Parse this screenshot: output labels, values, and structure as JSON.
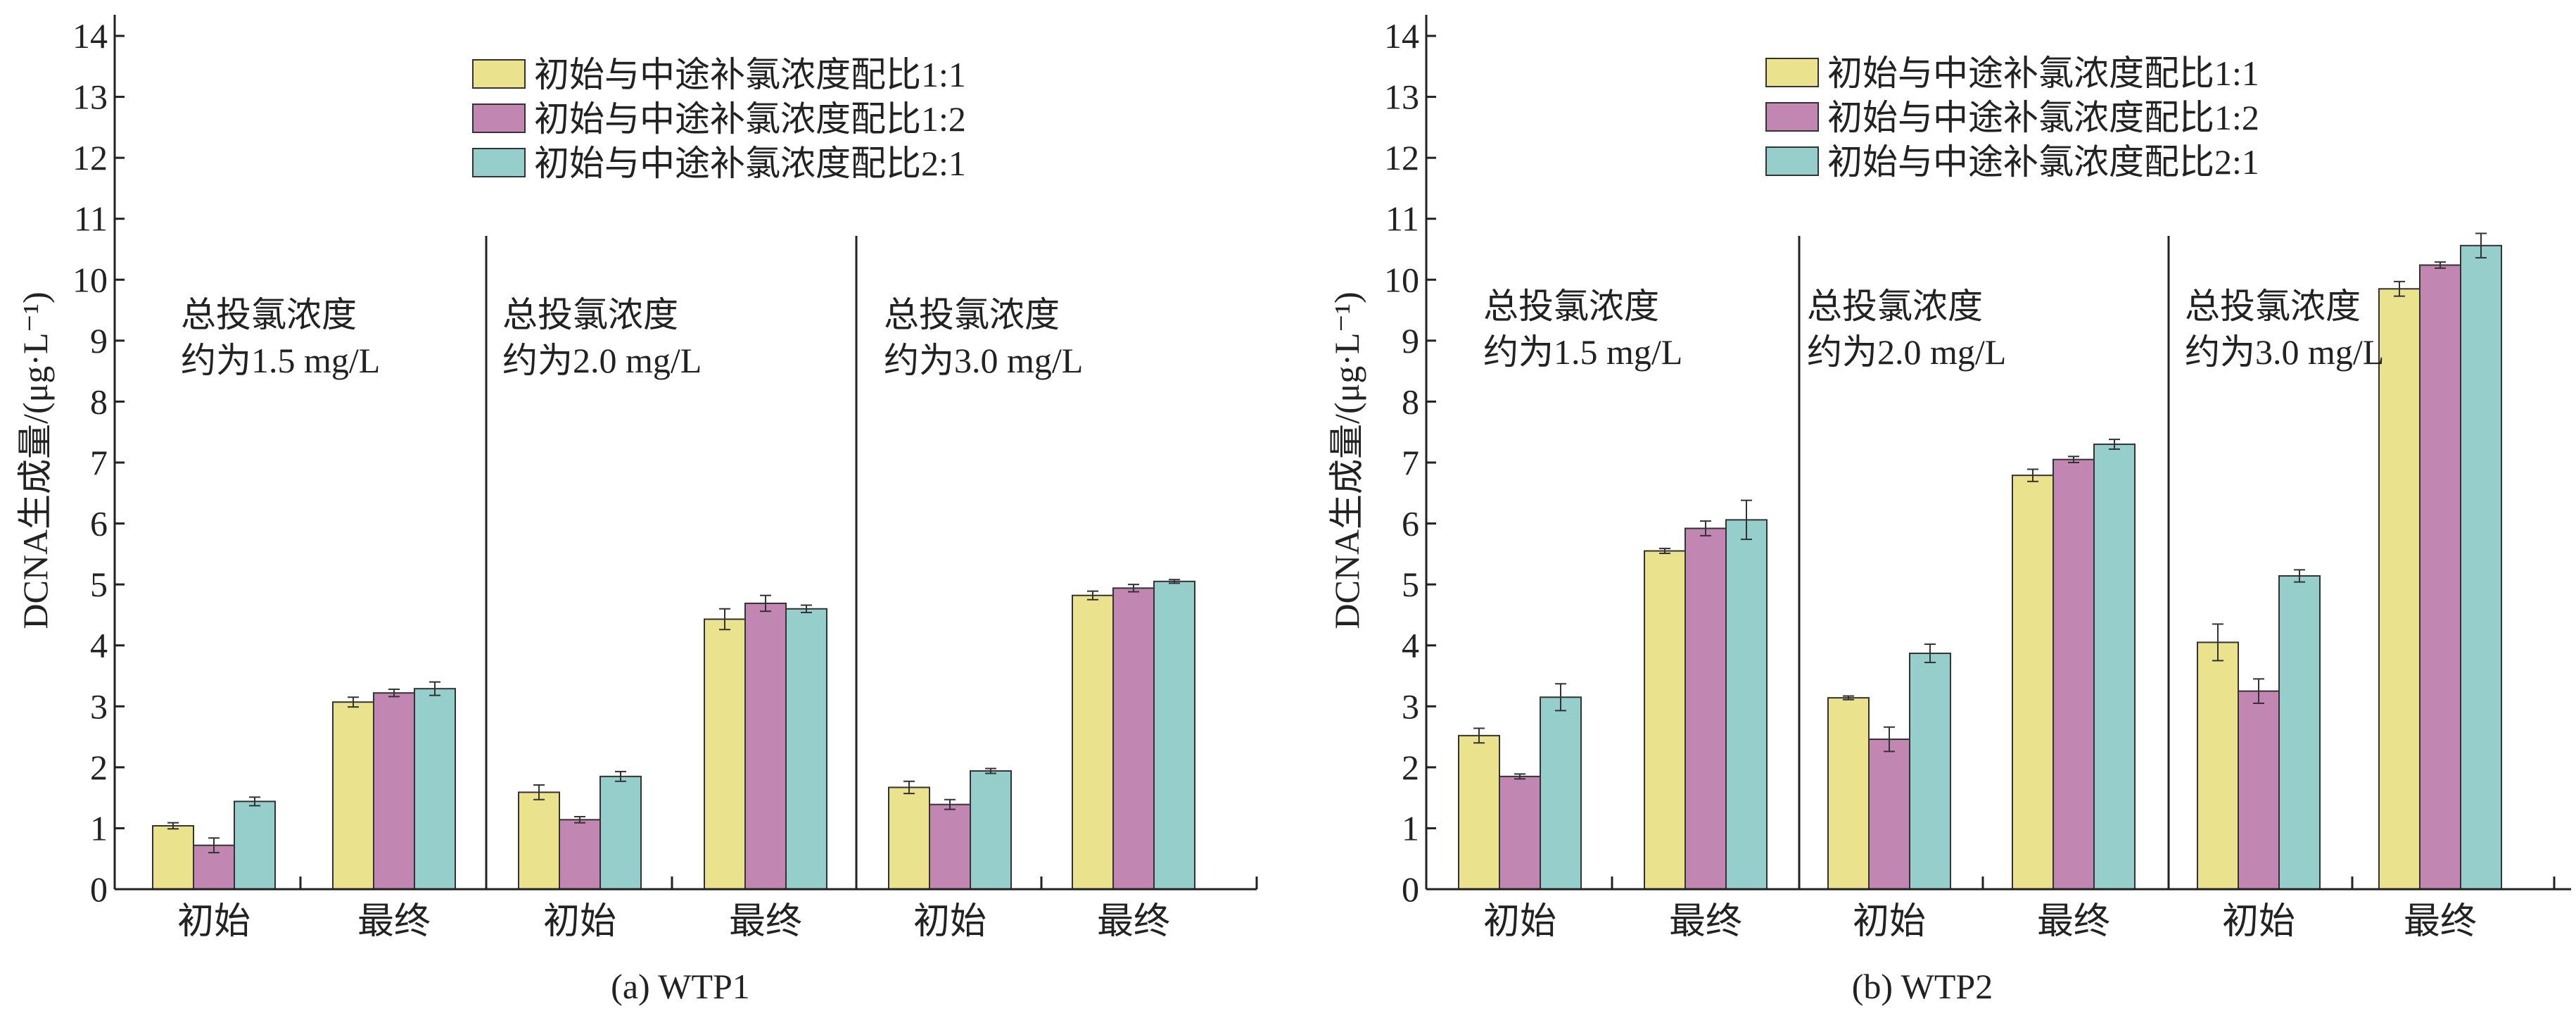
{
  "colors": {
    "s1": "#ebe28e",
    "s2": "#c186b1",
    "s3": "#95cecb",
    "axis": "#222222"
  },
  "chart_data": [
    {
      "type": "bar",
      "caption": "(a) WTP1",
      "ylabel": "DCNA生成量/(μg·L⁻¹)",
      "ylim": [
        0,
        14
      ],
      "yticks": [
        "0",
        "1",
        "2",
        "3",
        "4",
        "5",
        "6",
        "7",
        "8",
        "9",
        "10",
        "11",
        "12",
        "13",
        "14"
      ],
      "categories": [
        "初始",
        "最终",
        "初始",
        "最终",
        "初始",
        "最终"
      ],
      "group_annotations": [
        {
          "line1": "总投氯浓度",
          "line2": "约为1.5 mg/L"
        },
        {
          "line1": "总投氯浓度",
          "line2": "约为2.0 mg/L"
        },
        {
          "line1": "总投氯浓度",
          "line2": "约为3.0 mg/L"
        }
      ],
      "legend_position": "top-right",
      "series": [
        {
          "name": "初始与中途补氯浓度配比1:1",
          "values": [
            1.04,
            3.07,
            1.59,
            4.43,
            1.67,
            4.82
          ],
          "errors": [
            0.05,
            0.08,
            0.12,
            0.17,
            0.1,
            0.07
          ]
        },
        {
          "name": "初始与中途补氯浓度配比1:2",
          "values": [
            0.72,
            3.22,
            1.14,
            4.69,
            1.39,
            4.94
          ],
          "errors": [
            0.12,
            0.06,
            0.05,
            0.13,
            0.08,
            0.06
          ]
        },
        {
          "name": "初始与中途补氯浓度配比2:1",
          "values": [
            1.44,
            3.29,
            1.85,
            4.6,
            1.94,
            5.05
          ],
          "errors": [
            0.07,
            0.11,
            0.08,
            0.06,
            0.04,
            0.03
          ]
        }
      ]
    },
    {
      "type": "bar",
      "caption": "(b) WTP2",
      "ylabel": "DCNA生成量/(μg·L⁻¹)",
      "ylim": [
        0,
        14
      ],
      "yticks": [
        "0",
        "1",
        "2",
        "3",
        "4",
        "5",
        "6",
        "7",
        "8",
        "9",
        "10",
        "11",
        "12",
        "13",
        "14"
      ],
      "categories": [
        "初始",
        "最终",
        "初始",
        "最终",
        "初始",
        "最终"
      ],
      "group_annotations": [
        {
          "line1": "总投氯浓度",
          "line2": "约为1.5 mg/L"
        },
        {
          "line1": "总投氯浓度",
          "line2": "约为2.0 mg/L"
        },
        {
          "line1": "总投氯浓度",
          "line2": "约为3.0 mg/L"
        }
      ],
      "legend_position": "top-right",
      "series": [
        {
          "name": "初始与中途补氯浓度配比1:1",
          "values": [
            2.52,
            5.55,
            3.14,
            6.79,
            4.05,
            9.85
          ],
          "errors": [
            0.12,
            0.04,
            0.03,
            0.1,
            0.3,
            0.12
          ]
        },
        {
          "name": "初始与中途补氯浓度配比1:2",
          "values": [
            1.85,
            5.92,
            2.46,
            7.05,
            3.25,
            10.24
          ],
          "errors": [
            0.04,
            0.12,
            0.2,
            0.05,
            0.2,
            0.05
          ]
        },
        {
          "name": "初始与中途补氯浓度配比2:1",
          "values": [
            3.15,
            6.06,
            3.87,
            7.3,
            5.14,
            10.56
          ],
          "errors": [
            0.22,
            0.32,
            0.15,
            0.08,
            0.1,
            0.2
          ]
        }
      ]
    }
  ]
}
